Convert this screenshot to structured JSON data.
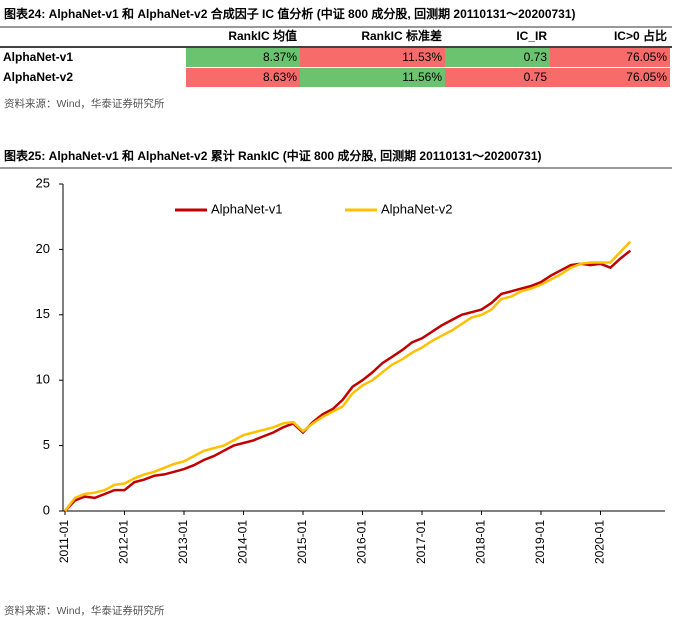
{
  "table_title": "图表24:  AlphaNet-v1 和 AlphaNet-v2 合成因子 IC 值分析 (中证 800 成分股, 回测期 20110131～20200731)",
  "table": {
    "header": [
      "RankIC 均值",
      "RankIC 标准差",
      "IC_IR",
      "IC>0 占比"
    ],
    "rows": [
      {
        "label": "AlphaNet-v1",
        "cells": [
          "8.37%",
          "11.53%",
          "0.73",
          "76.05%"
        ],
        "colors": [
          "#6cc36f",
          "#f86b6b",
          "#6cc36f",
          "#f86b6b"
        ]
      },
      {
        "label": "AlphaNet-v2",
        "cells": [
          "8.63%",
          "11.56%",
          "0.75",
          "76.05%"
        ],
        "colors": [
          "#f86b6b",
          "#6cc36f",
          "#f86b6b",
          "#f86b6b"
        ]
      }
    ]
  },
  "source": "资料来源：Wind，华泰证券研究所",
  "chart_data": {
    "type": "line",
    "title": "图表25:  AlphaNet-v1 和 AlphaNet-v2 累计 RankIC (中证 800 成分股, 回测期 20110131～20200731)",
    "x": [
      "2011-01",
      "2011-03",
      "2011-05",
      "2011-07",
      "2011-09",
      "2011-11",
      "2012-01",
      "2012-03",
      "2012-05",
      "2012-07",
      "2012-09",
      "2012-11",
      "2013-01",
      "2013-03",
      "2013-05",
      "2013-07",
      "2013-09",
      "2013-11",
      "2014-01",
      "2014-03",
      "2014-05",
      "2014-07",
      "2014-09",
      "2014-11",
      "2015-01",
      "2015-03",
      "2015-05",
      "2015-07",
      "2015-09",
      "2015-11",
      "2016-01",
      "2016-03",
      "2016-05",
      "2016-07",
      "2016-09",
      "2016-11",
      "2017-01",
      "2017-03",
      "2017-05",
      "2017-07",
      "2017-09",
      "2017-11",
      "2018-01",
      "2018-03",
      "2018-05",
      "2018-07",
      "2018-09",
      "2018-11",
      "2019-01",
      "2019-03",
      "2019-05",
      "2019-07",
      "2019-09",
      "2019-11",
      "2020-01",
      "2020-03",
      "2020-05",
      "2020-07"
    ],
    "series": [
      {
        "name": "AlphaNet-v1",
        "color": "#c00000",
        "values": [
          0,
          0.8,
          1.1,
          1.0,
          1.3,
          1.6,
          1.6,
          2.2,
          2.4,
          2.7,
          2.8,
          3.0,
          3.2,
          3.5,
          3.9,
          4.2,
          4.6,
          5.0,
          5.2,
          5.4,
          5.7,
          6.0,
          6.4,
          6.7,
          6.0,
          6.8,
          7.4,
          7.8,
          8.5,
          9.5,
          10.0,
          10.6,
          11.3,
          11.8,
          12.3,
          12.9,
          13.2,
          13.7,
          14.2,
          14.6,
          15.0,
          15.2,
          15.4,
          15.9,
          16.6,
          16.8,
          17.0,
          17.2,
          17.5,
          18.0,
          18.4,
          18.8,
          18.9,
          18.8,
          18.9,
          18.6,
          19.3,
          19.9
        ]
      },
      {
        "name": "AlphaNet-v2",
        "color": "#ffc000",
        "values": [
          0,
          1.0,
          1.3,
          1.4,
          1.6,
          2.0,
          2.1,
          2.5,
          2.8,
          3.0,
          3.3,
          3.6,
          3.8,
          4.2,
          4.6,
          4.8,
          5.0,
          5.4,
          5.8,
          6.0,
          6.2,
          6.4,
          6.7,
          6.8,
          6.1,
          6.7,
          7.2,
          7.6,
          8.0,
          9.0,
          9.6,
          10.0,
          10.6,
          11.2,
          11.6,
          12.1,
          12.5,
          13.0,
          13.4,
          13.8,
          14.3,
          14.8,
          15.0,
          15.4,
          16.2,
          16.4,
          16.8,
          17.0,
          17.3,
          17.7,
          18.1,
          18.6,
          18.9,
          19.0,
          19.0,
          19.0,
          19.8,
          20.6
        ]
      }
    ],
    "xlim": [
      "2011-01",
      "2021-01"
    ],
    "xticks": [
      "2011-01",
      "2012-01",
      "2013-01",
      "2014-01",
      "2015-01",
      "2016-01",
      "2017-01",
      "2018-01",
      "2019-01",
      "2020-01"
    ],
    "ylim": [
      0,
      25
    ],
    "yticks": [
      0,
      5,
      10,
      15,
      20,
      25
    ],
    "legend": "top"
  }
}
